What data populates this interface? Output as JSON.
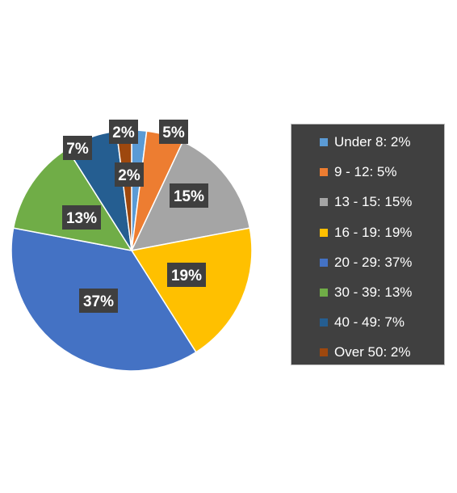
{
  "chart_data": {
    "type": "pie",
    "slices": [
      {
        "label": "Under 8",
        "value": 2,
        "data_label": "2%",
        "legend": "Under 8: 2%",
        "color": "#5B9BD5"
      },
      {
        "label": "9 - 12",
        "value": 5,
        "data_label": "5%",
        "legend": "9 - 12: 5%",
        "color": "#ED7D31"
      },
      {
        "label": "13 - 15",
        "value": 15,
        "data_label": "15%",
        "legend": "13 - 15: 15%",
        "color": "#A5A5A5"
      },
      {
        "label": "16 - 19",
        "value": 19,
        "data_label": "19%",
        "legend": "16 - 19: 19%",
        "color": "#FFC000"
      },
      {
        "label": "20 - 29",
        "value": 37,
        "data_label": "37%",
        "legend": "20 - 29: 37%",
        "color": "#4472C4"
      },
      {
        "label": "30 - 39",
        "value": 13,
        "data_label": "13%",
        "legend": "30 - 39: 13%",
        "color": "#70AD47"
      },
      {
        "label": "40 - 49",
        "value": 7,
        "data_label": "7%",
        "legend": "40 - 49: 7%",
        "color": "#255E91"
      },
      {
        "label": "Over 50",
        "value": 2,
        "data_label": "2%",
        "legend": "Over 50: 2%",
        "color": "#9E480E"
      }
    ],
    "legend_position": "right",
    "label_style": "white bold text on dark grey boxes"
  }
}
